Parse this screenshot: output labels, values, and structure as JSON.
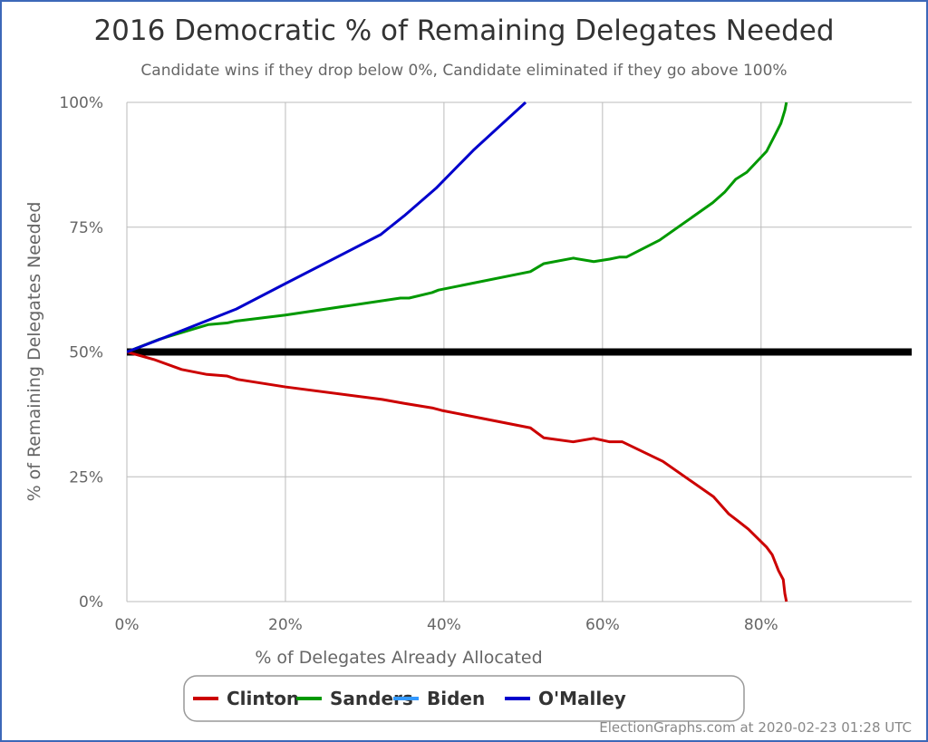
{
  "chart_data": {
    "type": "line",
    "title": "2016 Democratic % of Remaining Delegates Needed",
    "subtitle": "Candidate wins if they drop below 0%, Candidate eliminated if they go above 100%",
    "xlabel": "% of Delegates Already Allocated",
    "ylabel": "% of Remaining Delegates Needed",
    "xlim": [
      0,
      99
    ],
    "ylim": [
      0,
      100
    ],
    "x_ticks": [
      "0%",
      "20%",
      "40%",
      "60%",
      "80%"
    ],
    "x_tick_values": [
      0,
      20,
      40,
      60,
      80
    ],
    "y_ticks": [
      "0%",
      "25%",
      "50%",
      "75%",
      "100%"
    ],
    "y_tick_values": [
      0,
      25,
      50,
      75,
      100
    ],
    "grid": true,
    "legend_placement": "bottom",
    "reference_line": {
      "y": 50,
      "color": "#000000"
    },
    "series": [
      {
        "name": "Clinton",
        "color": "#cc0000",
        "points": [
          [
            0,
            50
          ],
          [
            3.4,
            48.5
          ],
          [
            6.9,
            46.5
          ],
          [
            10.1,
            45.5
          ],
          [
            12.6,
            45.2
          ],
          [
            14,
            44.5
          ],
          [
            20,
            43
          ],
          [
            32.2,
            40.5
          ],
          [
            35,
            39.7
          ],
          [
            38.5,
            38.8
          ],
          [
            39.7,
            38.3
          ],
          [
            50.9,
            34.8
          ],
          [
            52.6,
            32.8
          ],
          [
            56.3,
            32
          ],
          [
            58.9,
            32.7
          ],
          [
            60.9,
            32
          ],
          [
            62.5,
            32
          ],
          [
            67.6,
            28.1
          ],
          [
            74,
            21
          ],
          [
            75.9,
            17.6
          ],
          [
            77.2,
            16
          ],
          [
            78.4,
            14.5
          ],
          [
            80.7,
            10.9
          ],
          [
            81.4,
            9.4
          ],
          [
            82.2,
            6.2
          ],
          [
            82.8,
            4.4
          ],
          [
            83,
            1.6
          ],
          [
            83.2,
            0
          ]
        ]
      },
      {
        "name": "Sanders",
        "color": "#009900",
        "points": [
          [
            0,
            50
          ],
          [
            4,
            52.5
          ],
          [
            10.3,
            55.5
          ],
          [
            12.6,
            55.8
          ],
          [
            13.8,
            56.2
          ],
          [
            20,
            57.4
          ],
          [
            34.5,
            60.8
          ],
          [
            35.6,
            60.8
          ],
          [
            38.5,
            61.9
          ],
          [
            39.3,
            62.4
          ],
          [
            50.9,
            66.1
          ],
          [
            52.6,
            67.7
          ],
          [
            56.3,
            68.8
          ],
          [
            58.9,
            68.1
          ],
          [
            60.9,
            68.6
          ],
          [
            62.1,
            69
          ],
          [
            63,
            69
          ],
          [
            67.2,
            72.4
          ],
          [
            73.9,
            79.9
          ],
          [
            75.4,
            82
          ],
          [
            76.8,
            84.6
          ],
          [
            78.2,
            86
          ],
          [
            80.7,
            90.2
          ],
          [
            81.8,
            93.6
          ],
          [
            82.5,
            95.8
          ],
          [
            83,
            98.4
          ],
          [
            83.2,
            100
          ]
        ]
      },
      {
        "name": "Biden",
        "color": "#3399ff",
        "points": []
      },
      {
        "name": "O'Malley",
        "color": "#0000cc",
        "points": [
          [
            0,
            50
          ],
          [
            4.6,
            52.8
          ],
          [
            13.8,
            58.6
          ],
          [
            20,
            63.7
          ],
          [
            32,
            73.5
          ],
          [
            35,
            77.3
          ],
          [
            39,
            82.8
          ],
          [
            43.7,
            90.4
          ],
          [
            50.3,
            100
          ]
        ]
      }
    ]
  },
  "footer": {
    "credit": "ElectionGraphs.com at 2020-02-23 01:28 UTC"
  },
  "colors": {
    "frame": "#3d68b8",
    "grid": "#bbbbbb"
  }
}
